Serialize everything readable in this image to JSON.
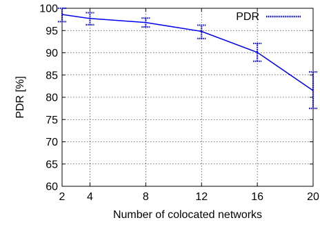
{
  "chart_data": {
    "type": "line",
    "xlabel": "Number of colocated networks",
    "ylabel": "PDR [%]",
    "xlim": [
      2,
      20
    ],
    "ylim": [
      60,
      100
    ],
    "xticks": [
      "2",
      "4",
      "8",
      "12",
      "16",
      "20"
    ],
    "yticks": [
      "60",
      "65",
      "70",
      "75",
      "80",
      "85",
      "90",
      "95",
      "100"
    ],
    "grid": true,
    "legend_position": "top-right",
    "series": [
      {
        "name": "PDR",
        "color": "#0000ee",
        "x": [
          2,
          4,
          8,
          12,
          16,
          20
        ],
        "y": [
          98.6,
          97.7,
          96.8,
          94.8,
          90.1,
          81.5
        ],
        "err_low": [
          97.0,
          96.3,
          95.8,
          93.2,
          88.1,
          77.5
        ],
        "err_high": [
          100.0,
          99.0,
          97.8,
          96.2,
          92.1,
          85.7
        ]
      }
    ]
  }
}
